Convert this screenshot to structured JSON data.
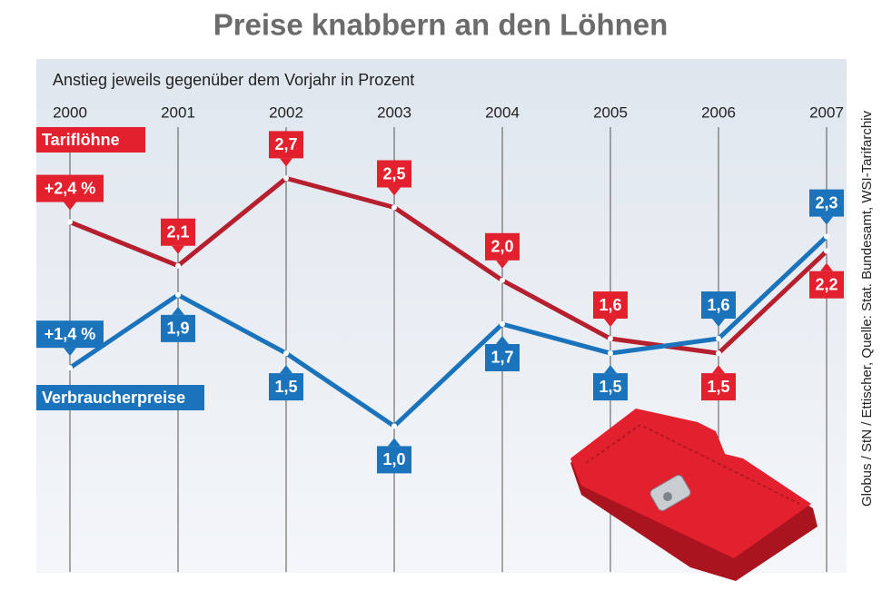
{
  "chart_data": {
    "type": "line",
    "title": "Preise knabbern an den Löhnen",
    "subtitle": "Anstieg jeweils gegenüber dem Vorjahr in Prozent",
    "source": "Globus / StN / Ettischer, Quelle: Stat. Bundesamt, WSI-Tarifarchiv",
    "categories": [
      "2000",
      "2001",
      "2002",
      "2003",
      "2004",
      "2005",
      "2006",
      "2007"
    ],
    "series": [
      {
        "name": "Tariflöhne",
        "color": "#e3202e",
        "line_color": "#b51f2e",
        "values": [
          2.4,
          2.1,
          2.7,
          2.5,
          2.0,
          1.6,
          1.5,
          2.2
        ],
        "value_labels": [
          "+2,4 %",
          "2,1",
          "2,7",
          "2,5",
          "2,0",
          "1,6",
          "1,5",
          "2,2"
        ]
      },
      {
        "name": "Verbraucherpreise",
        "color": "#1b74bb",
        "line_color": "#1b74bb",
        "values": [
          1.4,
          1.9,
          1.5,
          1.0,
          1.7,
          1.5,
          1.6,
          2.3
        ],
        "value_labels": [
          "+1,4 %",
          "1,9",
          "1,5",
          "1,0",
          "1,7",
          "1,5",
          "1,6",
          "2,3"
        ]
      }
    ]
  }
}
